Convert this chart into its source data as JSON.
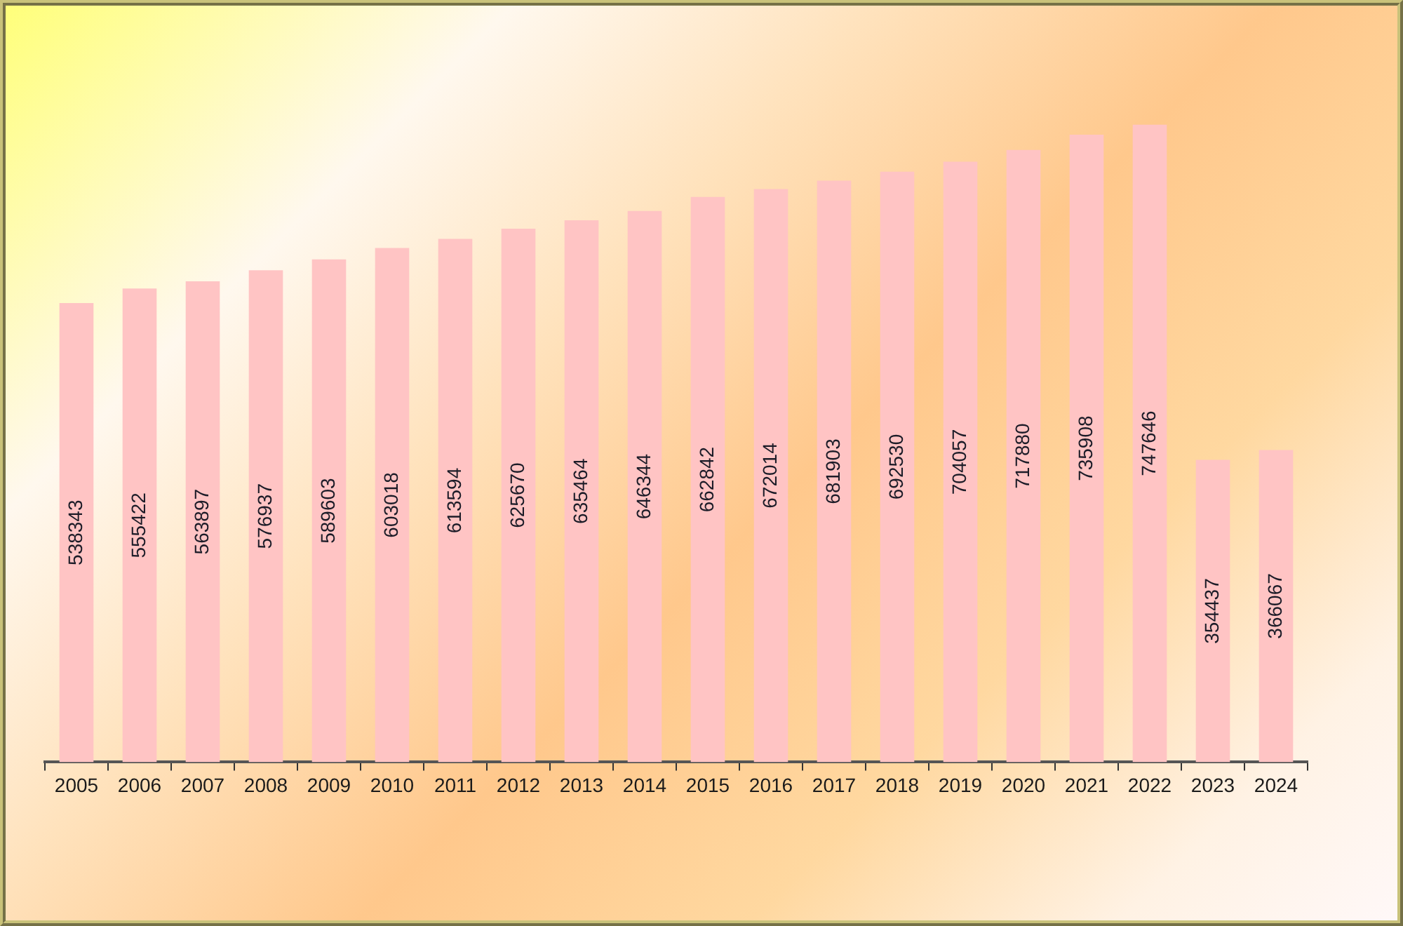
{
  "chart_data": {
    "type": "bar",
    "categories": [
      "2005",
      "2006",
      "2007",
      "2008",
      "2009",
      "2010",
      "2011",
      "2012",
      "2013",
      "2014",
      "2015",
      "2016",
      "2017",
      "2018",
      "2019",
      "2020",
      "2021",
      "2022",
      "2023",
      "2024"
    ],
    "values": [
      538343,
      555422,
      563897,
      576937,
      589603,
      603018,
      613594,
      625670,
      635464,
      646344,
      662842,
      672014,
      681903,
      692530,
      704057,
      717880,
      735908,
      747646,
      354437,
      366067
    ],
    "color": "#ffc4c4",
    "data_labels": true,
    "tick_labels": "x"
  }
}
